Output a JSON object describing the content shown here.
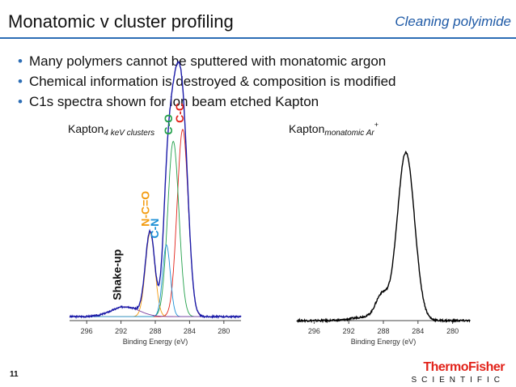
{
  "header": {
    "title": "Monatomic v cluster profiling",
    "subtitle": "Cleaning polyimide"
  },
  "bullets": [
    "Many polymers cannot be sputtered with monatomic argon",
    "Chemical information is destroyed & composition is modified",
    "C1s spectra shown for ion beam etched Kapton"
  ],
  "footer": {
    "page_number": "11",
    "logo_top": "ThermoFisher",
    "logo_bottom": "SCIENTIFIC"
  },
  "colors": {
    "accent": "#2c6db5",
    "envelope": "#1a1aa8",
    "cc": "#e2231a",
    "co": "#22a04a",
    "ncO": "#f39c12",
    "cn": "#1e90d6",
    "shake": "#7b3fa0",
    "raw": "#000000"
  },
  "chart_data": [
    {
      "type": "line",
      "title": "Kapton",
      "title_sub": "4 keV clusters",
      "xlabel": "Binding Energy (eV)",
      "ylabel": "",
      "xlim": [
        298,
        278
      ],
      "xticks": [
        296,
        292,
        288,
        284,
        280
      ],
      "peak_labels": [
        {
          "text": "C-C",
          "x": 284.7,
          "color": "#e2231a"
        },
        {
          "text": "C-O",
          "x": 286.0,
          "color": "#22a04a"
        },
        {
          "text": "N-C=O",
          "x": 288.7,
          "color": "#f39c12"
        },
        {
          "text": "C-N",
          "x": 287.6,
          "color": "#1e90d6"
        },
        {
          "text": "Shake-up",
          "x": 292.0,
          "color": "#111111"
        }
      ],
      "series": [
        {
          "component": "C-C",
          "peaks": [
            [
              284.8,
              0.94,
              0.65
            ]
          ],
          "color": "#e2231a"
        },
        {
          "component": "C-O",
          "peaks": [
            [
              285.9,
              0.88,
              0.65
            ]
          ],
          "color": "#22a04a"
        },
        {
          "component": "N-C=O",
          "peaks": [
            [
              288.6,
              0.42,
              0.55
            ]
          ],
          "color": "#f39c12"
        },
        {
          "component": "C-N",
          "peaks": [
            [
              286.7,
              0.36,
              0.45
            ]
          ],
          "color": "#1e90d6"
        },
        {
          "component": "Shake-up",
          "peaks": [
            [
              291.5,
              0.05,
              1.6
            ]
          ],
          "color": "#7b3fa0"
        }
      ],
      "envelope": {
        "baseline": 0.02,
        "noise": 0.008,
        "color": "#1a1aa8"
      }
    },
    {
      "type": "line",
      "title": "Kapton",
      "title_sub": "monatomic Ar",
      "title_sup": "+",
      "xlabel": "Binding Energy (eV)",
      "ylabel": "",
      "xlim": [
        298,
        278
      ],
      "xticks": [
        296,
        292,
        288,
        284,
        280
      ],
      "series": [
        {
          "component": "raw",
          "peaks": [
            [
              285.4,
              0.88,
              1.0
            ],
            [
              288.2,
              0.12,
              0.7
            ],
            [
              290.0,
              0.02,
              1.5
            ]
          ],
          "color": "#000000"
        }
      ],
      "envelope": {
        "baseline": 0.0,
        "noise": 0.01,
        "color": "#000000"
      }
    }
  ]
}
